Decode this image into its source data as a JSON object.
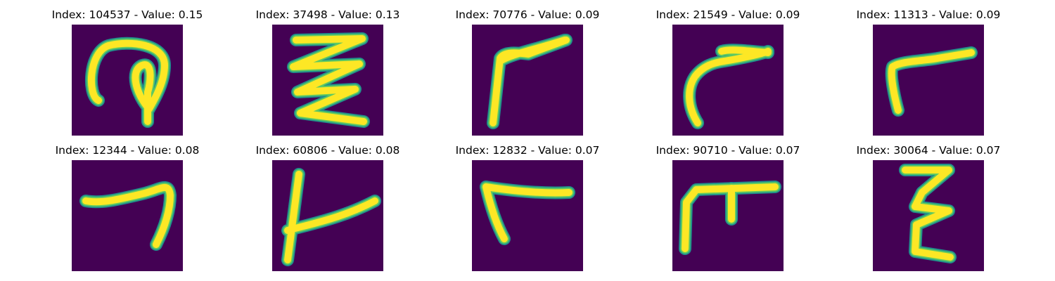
{
  "colors": {
    "background": "#440154",
    "stroke_core": "#fde725",
    "stroke_edge": "#21918c",
    "stroke_mid": "#5ec962"
  },
  "panels": [
    {
      "title": "Index: 104537 - Value: 0.15",
      "shape": "loop-hook"
    },
    {
      "title": "Index: 37498 - Value: 0.13",
      "shape": "zigzag"
    },
    {
      "title": "Index: 70776 - Value: 0.09",
      "shape": "angle-left"
    },
    {
      "title": "Index: 21549 - Value: 0.09",
      "shape": "curve-arc"
    },
    {
      "title": "Index: 11313 - Value: 0.09",
      "shape": "boot"
    },
    {
      "title": "Index: 12344 - Value: 0.08",
      "shape": "seven"
    },
    {
      "title": "Index: 60806 - Value: 0.08",
      "shape": "t-bar"
    },
    {
      "title": "Index: 12832 - Value: 0.07",
      "shape": "corner"
    },
    {
      "title": "Index: 90710 - Value: 0.07",
      "shape": "table"
    },
    {
      "title": "Index: 30064 - Value: 0.07",
      "shape": "epsilon-z"
    }
  ]
}
